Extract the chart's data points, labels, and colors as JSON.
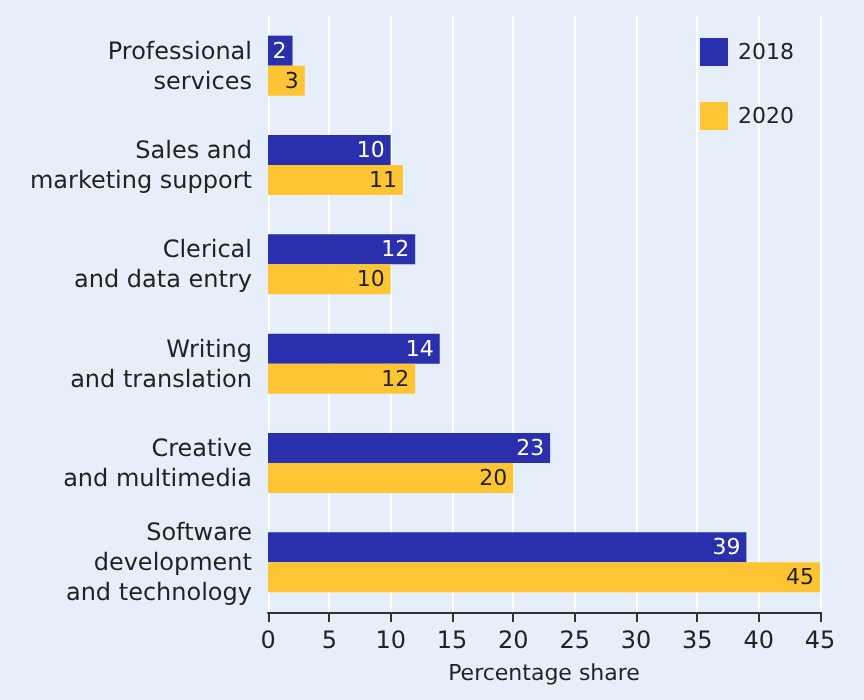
{
  "chart_data": {
    "type": "bar",
    "orientation": "horizontal",
    "xlabel": "Percentage share",
    "categories": [
      "Professional\nservices",
      "Sales and\nmarketing support",
      "Clerical\nand data entry",
      "Writing\nand translation",
      "Creative\nand multimedia",
      "Software\ndevelopment\nand technology"
    ],
    "series": [
      {
        "name": "2018",
        "color": "#2a2fad",
        "values": [
          2,
          10,
          12,
          14,
          23,
          39
        ]
      },
      {
        "name": "2020",
        "color": "#fdc533",
        "values": [
          3,
          11,
          10,
          12,
          20,
          45
        ]
      }
    ],
    "xlim": [
      0,
      45
    ],
    "xticks": [
      0,
      5,
      10,
      15,
      20,
      25,
      30,
      35,
      40,
      45
    ],
    "grid": "x",
    "legend": "top right",
    "data_labels": true
  }
}
